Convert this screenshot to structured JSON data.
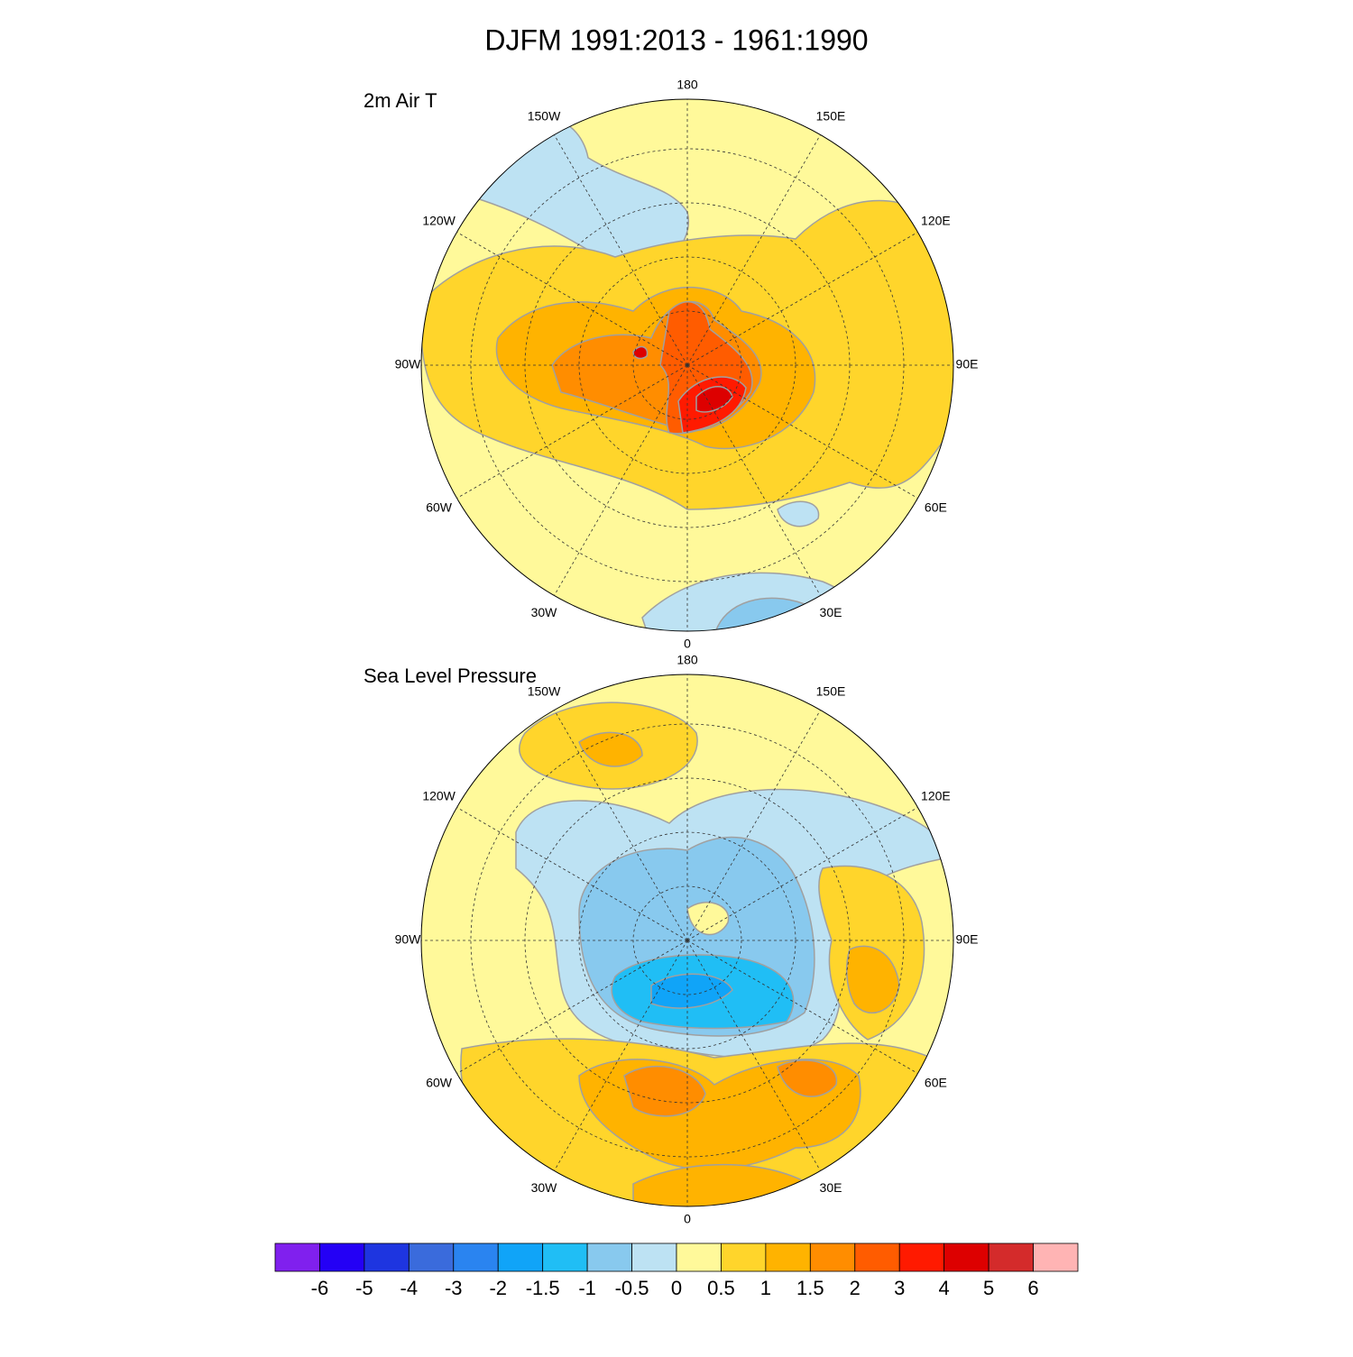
{
  "title": "DJFM 1991:2013 - 1961:1990",
  "panels": [
    {
      "title": "2m Air T",
      "longitude_labels": [
        "0",
        "30E",
        "60E",
        "90E",
        "120E",
        "150E",
        "180",
        "150W",
        "120W",
        "90W",
        "60W",
        "30W"
      ]
    },
    {
      "title": "Sea Level Pressure",
      "longitude_labels": [
        "0",
        "30E",
        "60E",
        "90E",
        "120E",
        "150E",
        "180",
        "150W",
        "120W",
        "90W",
        "60W",
        "30W"
      ]
    }
  ],
  "colorbar": {
    "colors": [
      "#8020ee",
      "#2400f5",
      "#1e35e0",
      "#3a6bdc",
      "#2a84f0",
      "#10a4f8",
      "#20bef5",
      "#88c9ee",
      "#bde2f3",
      "#fff99a",
      "#ffd52b",
      "#ffb300",
      "#ff8d00",
      "#ff5c00",
      "#ff1a00",
      "#dd0000",
      "#d42b2b",
      "#ffb4b4"
    ],
    "labels": [
      "-6",
      "-5",
      "-4",
      "-3",
      "-2",
      "-1.5",
      "-1",
      "-0.5",
      "0",
      "0.5",
      "1",
      "1.5",
      "2",
      "3",
      "4",
      "5",
      "6"
    ]
  }
}
